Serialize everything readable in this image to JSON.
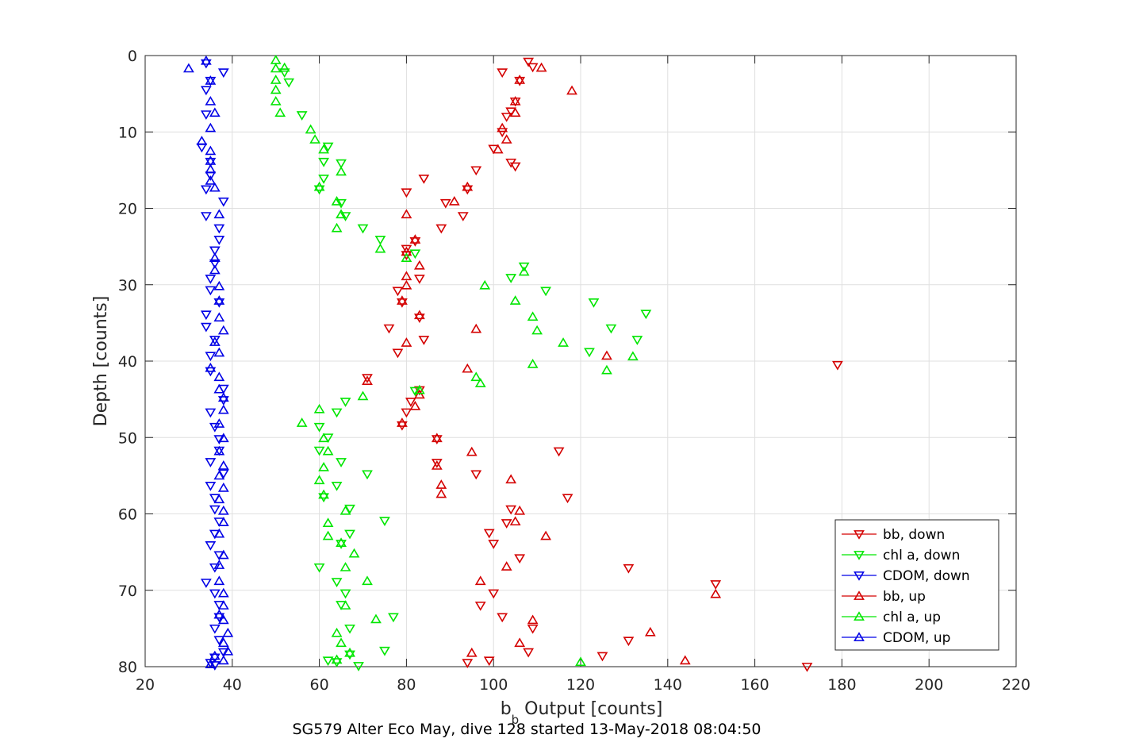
{
  "chart_data": {
    "type": "scatter",
    "title": "",
    "xlabel_main": "b",
    "xlabel_sub": "b",
    "xlabel_rest": " Output [counts]",
    "ylabel": "Depth [counts]",
    "caption": "SG579 Alter Eco May, dive 128 started 13-May-2018 08:04:50",
    "xlim": [
      20,
      220
    ],
    "ylim": [
      0,
      80
    ],
    "y_reversed": true,
    "grid": true,
    "xticks": [
      20,
      40,
      60,
      80,
      100,
      120,
      140,
      160,
      180,
      200,
      220
    ],
    "yticks": [
      0,
      10,
      20,
      30,
      40,
      50,
      60,
      70,
      80
    ],
    "legend_position": "bottom-right",
    "series": [
      {
        "name": "bb, down",
        "color": "#d40000",
        "marker": "triangle-down",
        "points": [
          [
            108,
            0.8
          ],
          [
            109,
            1.5
          ],
          [
            102,
            2.2
          ],
          [
            106,
            3.3
          ],
          [
            105,
            6
          ],
          [
            104,
            7.3
          ],
          [
            103,
            8
          ],
          [
            102,
            10
          ],
          [
            100,
            12.2
          ],
          [
            104,
            14
          ],
          [
            105,
            14.5
          ],
          [
            96,
            15
          ],
          [
            84,
            16.1
          ],
          [
            94,
            17.5
          ],
          [
            80,
            17.9
          ],
          [
            89,
            19.3
          ],
          [
            93,
            21
          ],
          [
            88,
            22.6
          ],
          [
            82,
            24.3
          ],
          [
            80,
            25.3
          ],
          [
            80,
            26.1
          ],
          [
            83,
            29.2
          ],
          [
            78,
            30.8
          ],
          [
            79,
            32.3
          ],
          [
            83,
            34.3
          ],
          [
            76,
            35.7
          ],
          [
            84,
            37.2
          ],
          [
            78,
            38.9
          ],
          [
            179,
            40.5
          ],
          [
            71,
            42.2
          ],
          [
            83,
            43.8
          ],
          [
            81,
            45.3
          ],
          [
            80,
            46.7
          ],
          [
            79,
            48.4
          ],
          [
            87,
            50.2
          ],
          [
            115,
            51.8
          ],
          [
            87,
            53.3
          ],
          [
            96,
            54.8
          ],
          [
            117,
            57.9
          ],
          [
            104,
            59.4
          ],
          [
            103,
            61.2
          ],
          [
            99,
            62.5
          ],
          [
            100,
            63.9
          ],
          [
            106,
            65.8
          ],
          [
            131,
            67.1
          ],
          [
            151,
            69.2
          ],
          [
            100,
            70.4
          ],
          [
            97,
            72
          ],
          [
            102,
            73.5
          ],
          [
            109,
            75
          ],
          [
            131,
            76.6
          ],
          [
            108,
            78.1
          ],
          [
            125,
            78.6
          ],
          [
            99,
            79.2
          ],
          [
            94,
            79.5
          ],
          [
            172,
            80
          ]
        ]
      },
      {
        "name": "chl a, down",
        "color": "#00e600",
        "marker": "triangle-down",
        "points": [
          [
            52,
            2.2
          ],
          [
            53,
            3.5
          ],
          [
            56,
            7.8
          ],
          [
            62,
            11.9
          ],
          [
            61,
            13.9
          ],
          [
            65,
            14.1
          ],
          [
            61,
            16.1
          ],
          [
            60,
            17.5
          ],
          [
            65,
            19.3
          ],
          [
            66,
            21
          ],
          [
            70,
            22.6
          ],
          [
            74,
            24.1
          ],
          [
            82,
            25.9
          ],
          [
            107,
            27.6
          ],
          [
            104,
            29.1
          ],
          [
            112,
            30.8
          ],
          [
            123,
            32.3
          ],
          [
            135,
            33.8
          ],
          [
            127,
            35.7
          ],
          [
            133,
            37.2
          ],
          [
            122,
            38.8
          ],
          [
            82,
            43.9
          ],
          [
            66,
            45.3
          ],
          [
            64,
            46.7
          ],
          [
            60,
            48.6
          ],
          [
            62,
            50
          ],
          [
            60,
            51.7
          ],
          [
            65,
            53.2
          ],
          [
            71,
            54.8
          ],
          [
            64,
            56.3
          ],
          [
            61,
            57.8
          ],
          [
            67,
            59.3
          ],
          [
            75,
            60.9
          ],
          [
            67,
            62.6
          ],
          [
            65,
            63.9
          ],
          [
            60,
            67
          ],
          [
            64,
            68.9
          ],
          [
            66,
            70.4
          ],
          [
            65,
            71.9
          ],
          [
            77,
            73.5
          ],
          [
            67,
            75
          ],
          [
            75,
            77.9
          ],
          [
            67,
            78.4
          ],
          [
            62,
            79.2
          ],
          [
            64,
            79.4
          ],
          [
            69,
            79.9
          ]
        ]
      },
      {
        "name": "CDOM, down",
        "color": "#0000e6",
        "marker": "triangle-down",
        "points": [
          [
            34,
            1
          ],
          [
            38,
            2.2
          ],
          [
            35,
            3.3
          ],
          [
            34,
            4.5
          ],
          [
            34,
            7.7
          ],
          [
            33,
            12
          ],
          [
            35,
            13.9
          ],
          [
            35,
            15.7
          ],
          [
            34,
            17.5
          ],
          [
            38,
            19.1
          ],
          [
            34,
            21
          ],
          [
            37,
            22.6
          ],
          [
            37,
            24.1
          ],
          [
            36,
            25.5
          ],
          [
            36,
            27.2
          ],
          [
            35,
            29.2
          ],
          [
            35,
            30.7
          ],
          [
            37,
            32.3
          ],
          [
            34,
            33.9
          ],
          [
            34,
            35.5
          ],
          [
            36,
            37.2
          ],
          [
            35,
            39.3
          ],
          [
            35,
            41.3
          ],
          [
            38,
            43.6
          ],
          [
            38,
            45.1
          ],
          [
            35,
            46.7
          ],
          [
            36,
            48.6
          ],
          [
            37,
            50.2
          ],
          [
            37,
            51.7
          ],
          [
            35,
            53.2
          ],
          [
            38,
            54.7
          ],
          [
            35,
            56.3
          ],
          [
            36,
            57.9
          ],
          [
            36,
            59.4
          ],
          [
            37,
            61
          ],
          [
            36,
            62.6
          ],
          [
            35,
            64.1
          ],
          [
            37,
            65.4
          ],
          [
            36,
            67
          ],
          [
            34,
            69
          ],
          [
            36,
            70.4
          ],
          [
            37,
            71.9
          ],
          [
            37,
            73.5
          ],
          [
            36,
            75
          ],
          [
            37,
            76.5
          ],
          [
            38,
            78.1
          ],
          [
            36,
            78.8
          ],
          [
            35,
            79.5
          ],
          [
            36,
            79.8
          ]
        ]
      },
      {
        "name": "bb, up",
        "color": "#d40000",
        "marker": "triangle-up",
        "points": [
          [
            111,
            1.6
          ],
          [
            106,
            3.2
          ],
          [
            118,
            4.6
          ],
          [
            105,
            6
          ],
          [
            105,
            7.5
          ],
          [
            102,
            9.5
          ],
          [
            103,
            11
          ],
          [
            101,
            12.3
          ],
          [
            94,
            17.2
          ],
          [
            91,
            19.1
          ],
          [
            80,
            20.8
          ],
          [
            82,
            24.1
          ],
          [
            80,
            25.7
          ],
          [
            83,
            27.5
          ],
          [
            80,
            28.9
          ],
          [
            80,
            30.1
          ],
          [
            79,
            32.1
          ],
          [
            83,
            34
          ],
          [
            96,
            35.8
          ],
          [
            80,
            37.6
          ],
          [
            126,
            39.3
          ],
          [
            94,
            41
          ],
          [
            71,
            42.6
          ],
          [
            83,
            44.4
          ],
          [
            82,
            45.9
          ],
          [
            79,
            48.1
          ],
          [
            87,
            50.1
          ],
          [
            95,
            51.9
          ],
          [
            87,
            53.7
          ],
          [
            104,
            55.5
          ],
          [
            88,
            56.2
          ],
          [
            88,
            57.4
          ],
          [
            106,
            59.6
          ],
          [
            105,
            61
          ],
          [
            112,
            62.9
          ],
          [
            103,
            66.9
          ],
          [
            97,
            68.8
          ],
          [
            151,
            70.5
          ],
          [
            109,
            73.9
          ],
          [
            136,
            75.5
          ],
          [
            106,
            76.9
          ],
          [
            95,
            78.2
          ],
          [
            144,
            79.2
          ]
        ]
      },
      {
        "name": "chl a, up",
        "color": "#00e600",
        "marker": "triangle-up",
        "points": [
          [
            50,
            0.6
          ],
          [
            52,
            1.6
          ],
          [
            50,
            1.7
          ],
          [
            50,
            3.2
          ],
          [
            50,
            4.5
          ],
          [
            50,
            6
          ],
          [
            51,
            7.5
          ],
          [
            58,
            9.7
          ],
          [
            59,
            11
          ],
          [
            61,
            12.3
          ],
          [
            65,
            15.2
          ],
          [
            60,
            17.2
          ],
          [
            64,
            19.1
          ],
          [
            65,
            20.8
          ],
          [
            64,
            22.6
          ],
          [
            74,
            25.3
          ],
          [
            80,
            26.5
          ],
          [
            107,
            28.3
          ],
          [
            98,
            30.1
          ],
          [
            105,
            32.1
          ],
          [
            109,
            34.2
          ],
          [
            110,
            36
          ],
          [
            116,
            37.6
          ],
          [
            132,
            39.4
          ],
          [
            109,
            40.4
          ],
          [
            126,
            41.2
          ],
          [
            96,
            42.1
          ],
          [
            97,
            42.9
          ],
          [
            83,
            43.8
          ],
          [
            70,
            44.6
          ],
          [
            60,
            46.3
          ],
          [
            56,
            48.1
          ],
          [
            61,
            50.1
          ],
          [
            62,
            51.8
          ],
          [
            61,
            53.9
          ],
          [
            60,
            55.6
          ],
          [
            61,
            57.5
          ],
          [
            66,
            59.6
          ],
          [
            62,
            61.2
          ],
          [
            62,
            62.9
          ],
          [
            65,
            63.8
          ],
          [
            68,
            65.2
          ],
          [
            66,
            67
          ],
          [
            71,
            68.8
          ],
          [
            66,
            72
          ],
          [
            73,
            73.8
          ],
          [
            64,
            75.6
          ],
          [
            65,
            76.9
          ],
          [
            67,
            78.2
          ],
          [
            64,
            79.1
          ],
          [
            120,
            79.4
          ]
        ]
      },
      {
        "name": "CDOM, up",
        "color": "#0000e6",
        "marker": "triangle-up",
        "points": [
          [
            34,
            0.7
          ],
          [
            30,
            1.7
          ],
          [
            35,
            3.3
          ],
          [
            35,
            6
          ],
          [
            36,
            7.5
          ],
          [
            35,
            9.5
          ],
          [
            33,
            11.2
          ],
          [
            35,
            12.5
          ],
          [
            35,
            13.8
          ],
          [
            35,
            14.9
          ],
          [
            35,
            16.4
          ],
          [
            36,
            17.3
          ],
          [
            37,
            20.8
          ],
          [
            36,
            26.5
          ],
          [
            36,
            28.1
          ],
          [
            37,
            30.2
          ],
          [
            37,
            32.1
          ],
          [
            37,
            34.3
          ],
          [
            38,
            36
          ],
          [
            36,
            37.5
          ],
          [
            37,
            38.9
          ],
          [
            35,
            40.9
          ],
          [
            37,
            42.1
          ],
          [
            37,
            43.7
          ],
          [
            38,
            44.8
          ],
          [
            38,
            46.4
          ],
          [
            37,
            48.2
          ],
          [
            38,
            50.1
          ],
          [
            37,
            51.8
          ],
          [
            38,
            53.7
          ],
          [
            37,
            55
          ],
          [
            38,
            56.6
          ],
          [
            37,
            58.1
          ],
          [
            38,
            59.6
          ],
          [
            38,
            61.1
          ],
          [
            37,
            62.6
          ],
          [
            38,
            65.4
          ],
          [
            37,
            66.7
          ],
          [
            37,
            68.8
          ],
          [
            38,
            70.4
          ],
          [
            38,
            72
          ],
          [
            37,
            73.2
          ],
          [
            38,
            73.9
          ],
          [
            39,
            75.6
          ],
          [
            38,
            76.9
          ],
          [
            39,
            78
          ],
          [
            36,
            78.6
          ],
          [
            38,
            79.2
          ],
          [
            35,
            79.7
          ]
        ]
      }
    ]
  }
}
